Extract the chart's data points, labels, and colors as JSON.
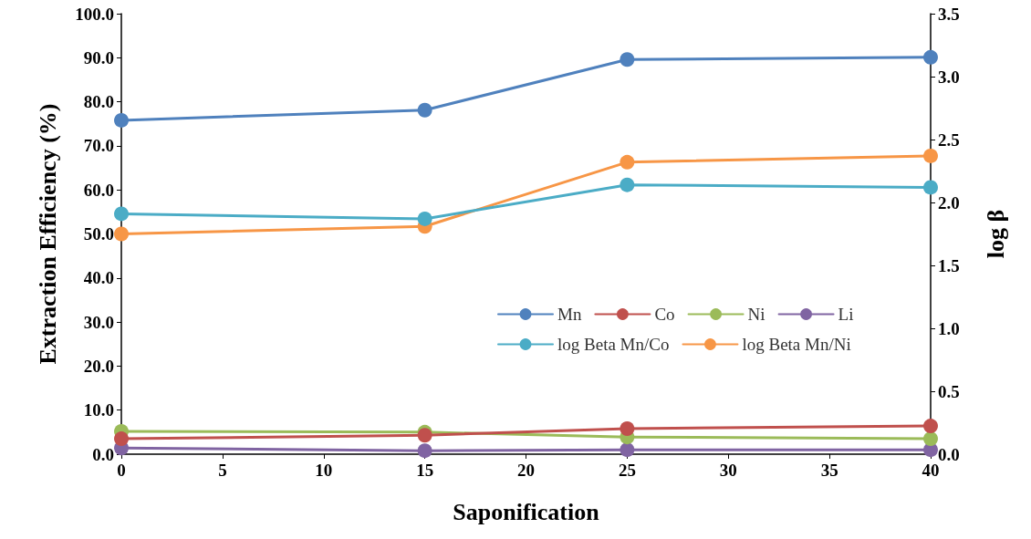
{
  "chart_data": {
    "type": "line",
    "xlabel": "Saponification",
    "ylabel": "Extraction Efficiency (%)",
    "y2label": "log β",
    "x": [
      0,
      15,
      25,
      40
    ],
    "xlim": [
      0,
      40
    ],
    "xticks": [
      0,
      5,
      10,
      15,
      20,
      25,
      30,
      35,
      40
    ],
    "ylim": [
      0,
      100
    ],
    "yticks": [
      {
        "value": 0,
        "label": "0.0"
      },
      {
        "value": 10,
        "label": "10.0"
      },
      {
        "value": 20,
        "label": "20.0"
      },
      {
        "value": 30,
        "label": "30.0"
      },
      {
        "value": 40,
        "label": "40.0"
      },
      {
        "value": 50,
        "label": "50.0"
      },
      {
        "value": 60,
        "label": "60.0"
      },
      {
        "value": 70,
        "label": "70.0"
      },
      {
        "value": 80,
        "label": "80.0"
      },
      {
        "value": 90,
        "label": "90.0"
      },
      {
        "value": 100,
        "label": "100.0"
      }
    ],
    "y2lim": [
      0,
      3.5
    ],
    "y2ticks": [
      {
        "value": 0,
        "label": "0.0"
      },
      {
        "value": 0.5,
        "label": "0.5"
      },
      {
        "value": 1,
        "label": "1.0"
      },
      {
        "value": 1.5,
        "label": "1.5"
      },
      {
        "value": 2,
        "label": "2.0"
      },
      {
        "value": 2.5,
        "label": "2.5"
      },
      {
        "value": 3,
        "label": "3.0"
      },
      {
        "value": 3.5,
        "label": "3.5"
      }
    ],
    "series": [
      {
        "name": "Mn",
        "color": "#4f81bd",
        "values": [
          75.8,
          78.1,
          89.6,
          90.1
        ]
      },
      {
        "name": "Co",
        "color": "#c0504d",
        "values": [
          3.5,
          4.3,
          5.8,
          6.4
        ]
      },
      {
        "name": "Ni",
        "color": "#9bbb59",
        "values": [
          5.2,
          5.0,
          3.9,
          3.5
        ]
      },
      {
        "name": "Li",
        "color": "#8064a2",
        "values": [
          1.4,
          0.8,
          1.0,
          1.0
        ]
      },
      {
        "name": "log Beta Mn/Co",
        "color": "#4bacc6",
        "axis": "y2",
        "values": [
          1.91,
          1.87,
          2.14,
          2.12
        ]
      },
      {
        "name": "log Beta Mn/Ni",
        "color": "#f79646",
        "axis": "y2",
        "values": [
          1.75,
          1.81,
          2.32,
          2.37
        ]
      }
    ],
    "grid": false,
    "legend": "center",
    "marker": "circle",
    "line_style": "solid"
  }
}
